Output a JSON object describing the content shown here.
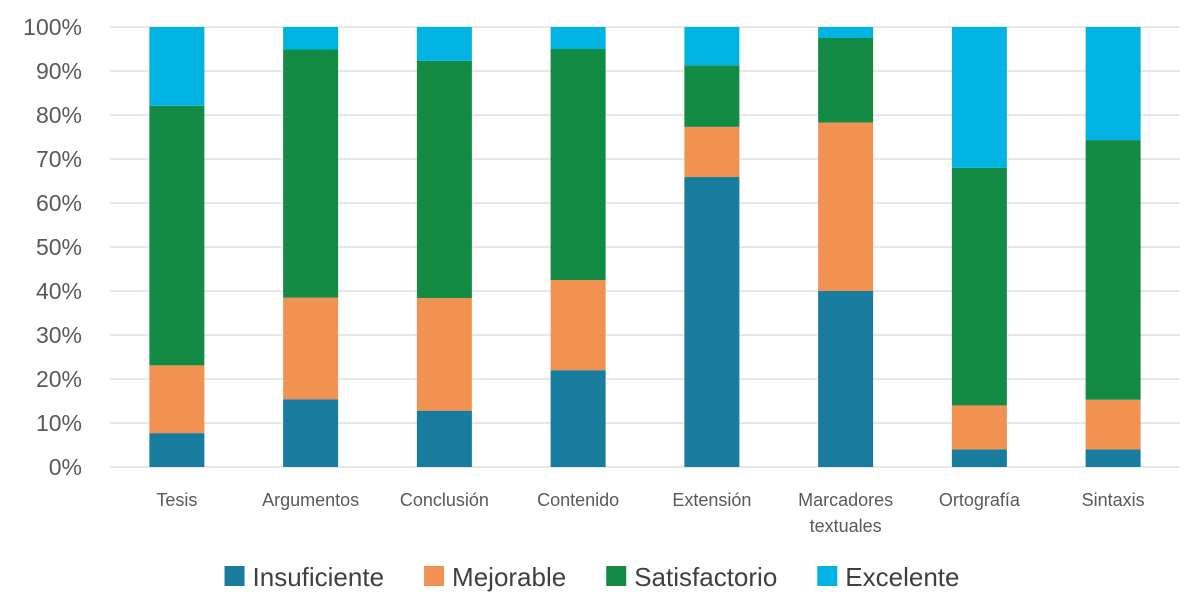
{
  "chart_data": {
    "type": "bar",
    "stacked": true,
    "percent": true,
    "title": "",
    "xlabel": "",
    "ylabel": "",
    "ylim": [
      0,
      100
    ],
    "yticks": [
      "0%",
      "10%",
      "20%",
      "30%",
      "40%",
      "50%",
      "60%",
      "70%",
      "80%",
      "90%",
      "100%"
    ],
    "grid": true,
    "legend_position": "bottom",
    "categories": [
      [
        "Tesis"
      ],
      [
        "Argumentos"
      ],
      [
        "Conclusión"
      ],
      [
        "Contenido"
      ],
      [
        "Extensión"
      ],
      [
        "Marcadores",
        "textuales"
      ],
      [
        "Ortografía"
      ],
      [
        "Sintaxis"
      ]
    ],
    "series": [
      {
        "name": "Insuficiente",
        "color": "#177c9e",
        "values": [
          7.7,
          15.4,
          12.8,
          22.0,
          65.9,
          40.0,
          4.0,
          4.0
        ]
      },
      {
        "name": "Mejorable",
        "color": "#f29252",
        "values": [
          15.4,
          23.1,
          25.6,
          20.5,
          11.4,
          38.3,
          10.0,
          11.3
        ]
      },
      {
        "name": "Satisfactorio",
        "color": "#138b45",
        "values": [
          59.0,
          56.4,
          53.9,
          52.5,
          14.0,
          19.2,
          54.0,
          59.0
        ]
      },
      {
        "name": "Excelente",
        "color": "#00b3e2",
        "values": [
          17.9,
          5.1,
          7.7,
          5.0,
          8.7,
          2.5,
          32.0,
          25.7
        ]
      }
    ]
  },
  "colors": {
    "gridline": "#d9d9d9",
    "axis_text": "#595959",
    "legend_text": "#404040"
  }
}
